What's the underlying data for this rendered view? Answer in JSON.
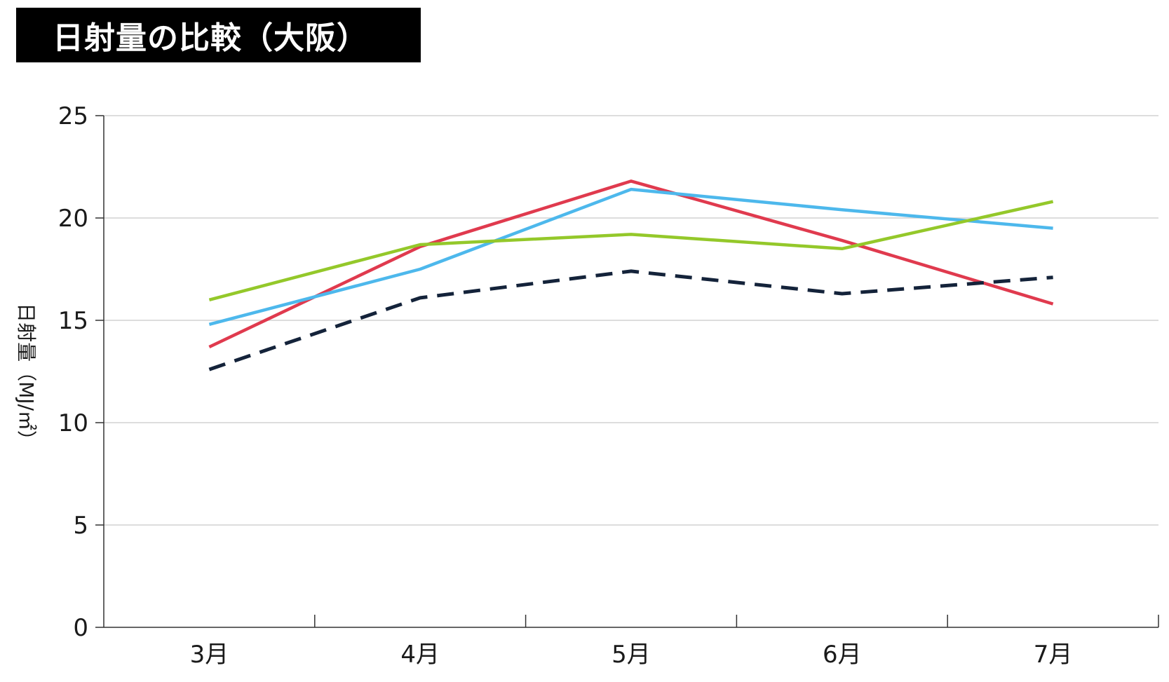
{
  "chart_data": {
    "type": "line",
    "title": "日射量の比較（大阪）",
    "ylabel": "日射量（MJ/㎡）",
    "xlabel": "",
    "categories": [
      "3月",
      "4月",
      "5月",
      "6月",
      "7月"
    ],
    "ylim": [
      0,
      25
    ],
    "yticks": [
      "0",
      "5",
      "10",
      "15",
      "20",
      "25"
    ],
    "grid": true,
    "legend": "none",
    "series": [
      {
        "color": "#e03a4e",
        "dashed": false,
        "values": [
          13.7,
          18.6,
          21.8,
          18.9,
          15.8
        ]
      },
      {
        "color": "#4db8ec",
        "dashed": false,
        "values": [
          14.8,
          17.5,
          21.4,
          20.4,
          19.5
        ]
      },
      {
        "color": "#94c82a",
        "dashed": false,
        "values": [
          16.0,
          18.7,
          19.2,
          18.5,
          20.8
        ]
      },
      {
        "color": "#14233a",
        "dashed": true,
        "values": [
          12.6,
          16.1,
          17.4,
          16.3,
          17.1
        ]
      }
    ]
  }
}
